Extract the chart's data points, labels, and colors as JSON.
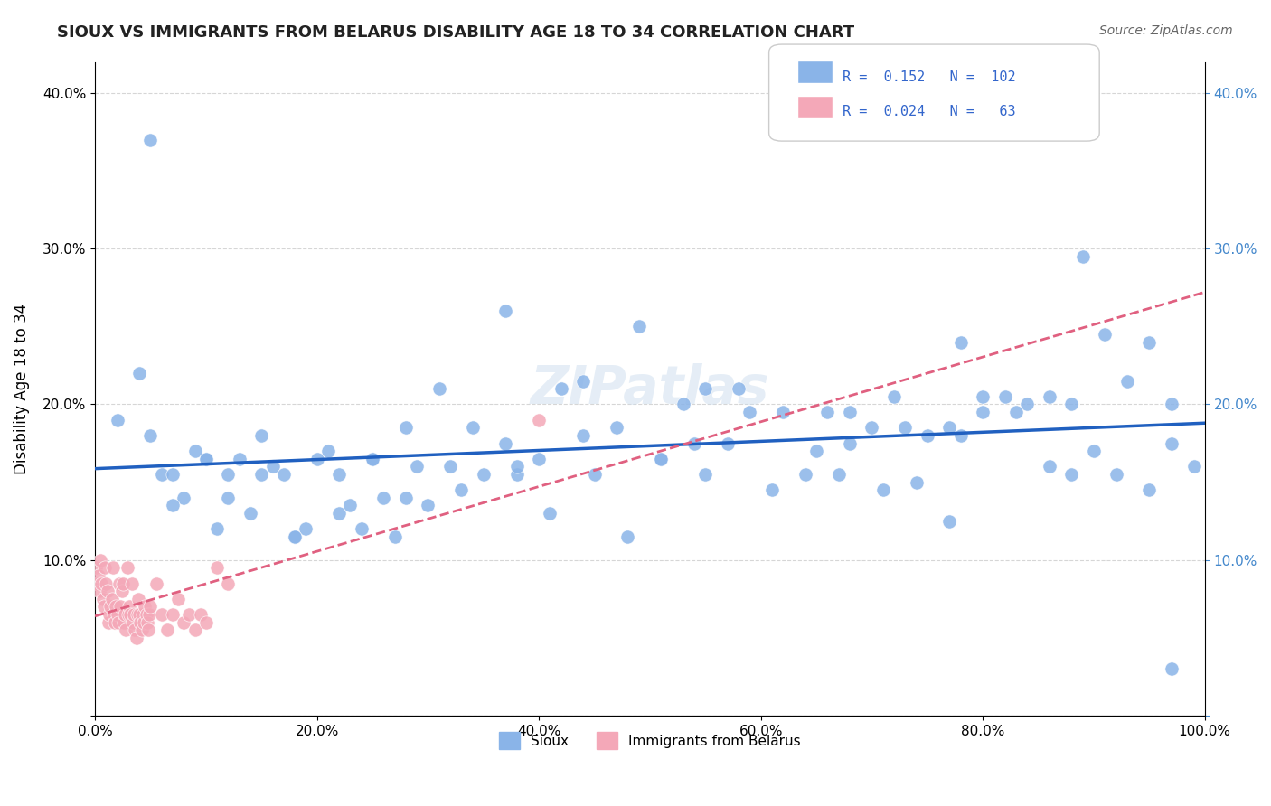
{
  "title": "SIOUX VS IMMIGRANTS FROM BELARUS DISABILITY AGE 18 TO 34 CORRELATION CHART",
  "source": "Source: ZipAtlas.com",
  "xlabel_bottom": "",
  "ylabel": "Disability Age 18 to 34",
  "xlim": [
    0,
    1.0
  ],
  "ylim": [
    0,
    0.42
  ],
  "xticks": [
    0.0,
    0.2,
    0.4,
    0.6,
    0.8,
    1.0
  ],
  "xticklabels": [
    "0.0%",
    "20.0%",
    "40.0%",
    "60.0%",
    "80.0%",
    "100.0%"
  ],
  "yticks": [
    0.0,
    0.1,
    0.2,
    0.3,
    0.4
  ],
  "yticklabels": [
    "",
    "10.0%",
    "20.0%",
    "30.0%",
    "40.0%"
  ],
  "legend_blue_R": "0.152",
  "legend_blue_N": "102",
  "legend_pink_R": "0.024",
  "legend_pink_N": "63",
  "legend_label_blue": "Sioux",
  "legend_label_pink": "Immigrants from Belarus",
  "blue_color": "#8ab4e8",
  "pink_color": "#f4a8b8",
  "blue_line_color": "#2060c0",
  "pink_line_color": "#e06080",
  "watermark": "ZIPatlas",
  "background_color": "#ffffff",
  "sioux_x": [
    0.02,
    0.04,
    0.05,
    0.06,
    0.07,
    0.08,
    0.09,
    0.1,
    0.11,
    0.12,
    0.13,
    0.14,
    0.15,
    0.16,
    0.17,
    0.18,
    0.19,
    0.2,
    0.21,
    0.22,
    0.23,
    0.24,
    0.25,
    0.26,
    0.27,
    0.28,
    0.29,
    0.3,
    0.32,
    0.33,
    0.35,
    0.37,
    0.38,
    0.4,
    0.42,
    0.44,
    0.45,
    0.47,
    0.49,
    0.51,
    0.53,
    0.55,
    0.57,
    0.59,
    0.62,
    0.64,
    0.66,
    0.68,
    0.7,
    0.72,
    0.73,
    0.75,
    0.77,
    0.78,
    0.8,
    0.82,
    0.84,
    0.86,
    0.88,
    0.9,
    0.91,
    0.93,
    0.95,
    0.97,
    0.99,
    0.05,
    0.07,
    0.1,
    0.12,
    0.15,
    0.18,
    0.22,
    0.25,
    0.28,
    0.31,
    0.34,
    0.37,
    0.41,
    0.44,
    0.48,
    0.51,
    0.54,
    0.58,
    0.61,
    0.65,
    0.68,
    0.71,
    0.74,
    0.77,
    0.8,
    0.83,
    0.86,
    0.89,
    0.92,
    0.95,
    0.97,
    0.38,
    0.55,
    0.67,
    0.78,
    0.88,
    0.97
  ],
  "sioux_y": [
    0.19,
    0.22,
    0.18,
    0.155,
    0.155,
    0.14,
    0.17,
    0.165,
    0.12,
    0.14,
    0.165,
    0.13,
    0.155,
    0.16,
    0.155,
    0.115,
    0.12,
    0.165,
    0.17,
    0.13,
    0.135,
    0.12,
    0.165,
    0.14,
    0.115,
    0.14,
    0.16,
    0.135,
    0.16,
    0.145,
    0.155,
    0.175,
    0.155,
    0.165,
    0.21,
    0.18,
    0.155,
    0.185,
    0.25,
    0.165,
    0.2,
    0.21,
    0.175,
    0.195,
    0.195,
    0.155,
    0.195,
    0.175,
    0.185,
    0.205,
    0.185,
    0.18,
    0.185,
    0.18,
    0.195,
    0.205,
    0.2,
    0.205,
    0.2,
    0.17,
    0.245,
    0.215,
    0.24,
    0.175,
    0.16,
    0.37,
    0.135,
    0.165,
    0.155,
    0.18,
    0.115,
    0.155,
    0.165,
    0.185,
    0.21,
    0.185,
    0.26,
    0.13,
    0.215,
    0.115,
    0.165,
    0.175,
    0.21,
    0.145,
    0.17,
    0.195,
    0.145,
    0.15,
    0.125,
    0.205,
    0.195,
    0.16,
    0.295,
    0.155,
    0.145,
    0.2,
    0.16,
    0.155,
    0.155,
    0.24,
    0.155,
    0.03
  ],
  "belarus_x": [
    0.001,
    0.002,
    0.003,
    0.004,
    0.005,
    0.006,
    0.007,
    0.008,
    0.009,
    0.01,
    0.011,
    0.012,
    0.013,
    0.014,
    0.015,
    0.016,
    0.017,
    0.018,
    0.019,
    0.02,
    0.021,
    0.022,
    0.023,
    0.024,
    0.025,
    0.026,
    0.027,
    0.028,
    0.029,
    0.03,
    0.031,
    0.032,
    0.033,
    0.034,
    0.035,
    0.036,
    0.037,
    0.038,
    0.039,
    0.04,
    0.041,
    0.042,
    0.043,
    0.044,
    0.045,
    0.046,
    0.047,
    0.048,
    0.049,
    0.05,
    0.055,
    0.06,
    0.065,
    0.07,
    0.075,
    0.08,
    0.085,
    0.09,
    0.095,
    0.1,
    0.11,
    0.12,
    0.4
  ],
  "belarus_y": [
    0.095,
    0.085,
    0.09,
    0.08,
    0.1,
    0.085,
    0.075,
    0.07,
    0.095,
    0.085,
    0.08,
    0.06,
    0.065,
    0.07,
    0.075,
    0.095,
    0.065,
    0.06,
    0.07,
    0.065,
    0.06,
    0.085,
    0.07,
    0.08,
    0.085,
    0.06,
    0.065,
    0.055,
    0.095,
    0.065,
    0.07,
    0.065,
    0.085,
    0.06,
    0.065,
    0.055,
    0.05,
    0.065,
    0.075,
    0.065,
    0.06,
    0.055,
    0.065,
    0.06,
    0.07,
    0.065,
    0.06,
    0.055,
    0.065,
    0.07,
    0.085,
    0.065,
    0.055,
    0.065,
    0.075,
    0.06,
    0.065,
    0.055,
    0.065,
    0.06,
    0.095,
    0.085,
    0.19
  ]
}
